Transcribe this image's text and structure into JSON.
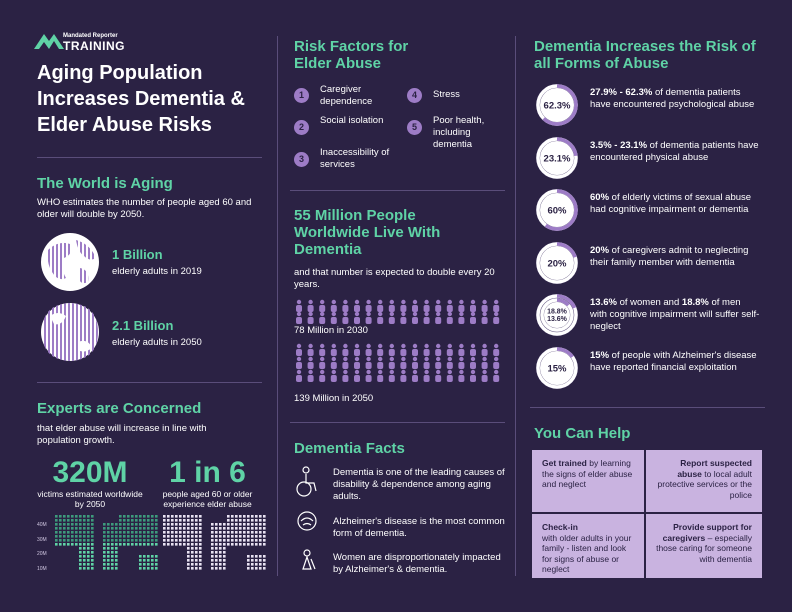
{
  "logo": {
    "small": "Mandated Reporter",
    "big": "TRAINING"
  },
  "title": "Aging Population Increases Dementia & Elder Abuse Risks",
  "aging": {
    "heading": "The World is Aging",
    "text": "WHO estimates the number of people aged 60 and older will double by 2050.",
    "stats": [
      {
        "value": "1 Billion",
        "label": "elderly adults in 2019"
      },
      {
        "value": "2.1 Billion",
        "label": "elderly adults in 2050"
      }
    ]
  },
  "experts": {
    "heading": "Experts are Concerned",
    "text": "that elder abuse will increase in line with population growth.",
    "stats": [
      {
        "value": "320M",
        "label": "victims estimated worldwide by 2050"
      },
      {
        "value": "1 in 6",
        "label": "people aged 60 or older experience elder abuse"
      }
    ],
    "map_legend": [
      "40M",
      "30M",
      "20M",
      "10M"
    ]
  },
  "risk": {
    "heading": "Risk Factors for Elder Abuse",
    "items": [
      {
        "num": "1",
        "text": "Caregiver dependence"
      },
      {
        "num": "2",
        "text": "Social isolation"
      },
      {
        "num": "3",
        "text": "Inaccessibility of services"
      },
      {
        "num": "4",
        "text": "Stress"
      },
      {
        "num": "5",
        "text": "Poor health, including dementia"
      }
    ]
  },
  "dementia": {
    "heading": "55 Million People Worldwide Live With Dementia",
    "text": "and that number is expected to double every 20 years.",
    "rows": [
      "78 Million in 2030",
      "139 Million in 2050"
    ]
  },
  "facts": {
    "heading": "Dementia Facts",
    "items": [
      "Dementia is one of the leading causes of disability & dependence among aging adults.",
      "Alzheimer's disease is the most common form of dementia.",
      "Women are disproportionately impacted by Alzheimer's & dementia."
    ]
  },
  "increase": {
    "heading": "Dementia Increases the Risk of all Forms of Abuse",
    "items": [
      {
        "ring": [
          {
            "value": 62.3,
            "label": "62.3%"
          }
        ],
        "bold": "27.9% - 62.3%",
        "text": " of dementia patients have encountered psychological abuse"
      },
      {
        "ring": [
          {
            "value": 23.1,
            "label": "23.1%"
          }
        ],
        "bold": "3.5% - 23.1%",
        "text": " of dementia patients have encountered physical abuse"
      },
      {
        "ring": [
          {
            "value": 60,
            "label": "60%"
          }
        ],
        "bold": "60%",
        "text": " of elderly victims of sexual abuse had cognitive impairment or dementia"
      },
      {
        "ring": [
          {
            "value": 20,
            "label": "20%"
          }
        ],
        "bold": "20%",
        "text": " of caregivers admit to neglecting their family member with dementia"
      },
      {
        "ring": [
          {
            "value": 18.8,
            "label": "18.8%"
          },
          {
            "value": 13.6,
            "label": "13.6%"
          }
        ],
        "bold": "13.6%",
        "text": " of women and ",
        "bold2": "18.8%",
        "text2": " of men with cognitive impairment will suffer self-neglect"
      },
      {
        "ring": [
          {
            "value": 15,
            "label": "15%"
          }
        ],
        "bold": "15%",
        "text": " of people with Alzheimer's disease have reported financial exploitation"
      }
    ]
  },
  "help": {
    "heading": "You Can Help",
    "pieces": [
      {
        "bold": "Get trained",
        "text": " by learning the signs of elder abuse and neglect"
      },
      {
        "bold": "Report suspected abuse",
        "text": " to local adult protective services or the police"
      },
      {
        "bold": "Check-in",
        "text": " with older adults in your family - listen and look for signs of abuse or neglect"
      },
      {
        "bold": "Provide support for caregivers",
        "text": " – especially those caring for someone with dementia"
      }
    ]
  }
}
